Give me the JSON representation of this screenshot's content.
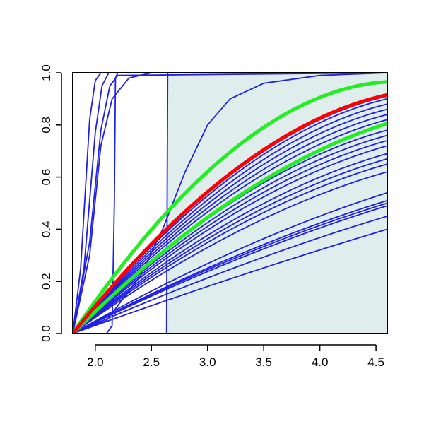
{
  "chart_data": {
    "type": "line",
    "title": "",
    "xlabel": "",
    "ylabel": "",
    "xlim": [
      1.8,
      4.6
    ],
    "ylim": [
      0,
      1
    ],
    "x_ticks": [
      "2.0",
      "2.5",
      "3.0",
      "3.5",
      "4.0",
      "4.5"
    ],
    "y_ticks": [
      "0.0",
      "0.2",
      "0.4",
      "0.6",
      "0.8",
      "1.0"
    ],
    "x_tick_values": [
      2.0,
      2.5,
      3.0,
      3.5,
      4.0,
      4.5
    ],
    "y_tick_values": [
      0.0,
      0.2,
      0.4,
      0.6,
      0.8,
      1.0
    ],
    "shaded_region": {
      "x_from": 2.64,
      "x_to": 4.6,
      "color": "#e0eded"
    },
    "colors": {
      "blue": "#2020e6",
      "red": "#ff0000",
      "green": "#22ee22",
      "frame": "#000000"
    },
    "series": [
      {
        "color": "blue",
        "points": [
          [
            1.8,
            0
          ],
          [
            1.87,
            0.25
          ],
          [
            1.95,
            0.82
          ],
          [
            2.0,
            0.97
          ],
          [
            2.05,
            1.0
          ],
          [
            4.6,
            1.0
          ]
        ]
      },
      {
        "color": "blue",
        "points": [
          [
            1.8,
            0
          ],
          [
            1.9,
            0.25
          ],
          [
            2.0,
            0.77
          ],
          [
            2.06,
            0.95
          ],
          [
            2.12,
            1.0
          ],
          [
            4.6,
            1.0
          ]
        ]
      },
      {
        "color": "blue",
        "points": [
          [
            1.8,
            0
          ],
          [
            1.95,
            0.35
          ],
          [
            2.05,
            0.78
          ],
          [
            2.13,
            0.95
          ],
          [
            2.2,
            0.99
          ],
          [
            4.6,
            1.0
          ]
        ]
      },
      {
        "color": "blue",
        "points": [
          [
            1.8,
            0
          ],
          [
            1.95,
            0.3
          ],
          [
            2.05,
            0.72
          ],
          [
            2.15,
            0.9
          ],
          [
            2.3,
            0.98
          ],
          [
            2.5,
            1.0
          ],
          [
            4.6,
            1.0
          ]
        ]
      },
      {
        "color": "blue",
        "points": [
          [
            1.8,
            0
          ],
          [
            2.1,
            0.0
          ],
          [
            2.15,
            0.03
          ],
          [
            2.17,
            0.5
          ],
          [
            2.18,
            0.98
          ],
          [
            2.2,
            1.0
          ],
          [
            4.6,
            1.0
          ]
        ]
      },
      {
        "color": "blue",
        "points": [
          [
            1.8,
            0
          ],
          [
            2.635,
            0
          ],
          [
            2.64,
            0.5
          ],
          [
            2.645,
            1.0
          ],
          [
            4.6,
            1.0
          ]
        ]
      },
      {
        "color": "blue",
        "points": [
          [
            1.8,
            0
          ],
          [
            2.1,
            0.05
          ],
          [
            2.4,
            0.22
          ],
          [
            2.6,
            0.4
          ],
          [
            2.8,
            0.62
          ],
          [
            3.0,
            0.8
          ],
          [
            3.2,
            0.9
          ],
          [
            3.5,
            0.96
          ],
          [
            4.0,
            0.99
          ],
          [
            4.6,
            1.0
          ]
        ]
      },
      {
        "color": "blue",
        "points": [
          [
            1.8,
            0
          ],
          [
            4.6,
            0.91
          ]
        ],
        "curve": 0.72
      },
      {
        "color": "blue",
        "points": [
          [
            1.8,
            0
          ],
          [
            4.6,
            0.9
          ]
        ],
        "curve": 0.7
      },
      {
        "color": "blue",
        "points": [
          [
            1.8,
            0
          ],
          [
            4.6,
            0.88
          ]
        ],
        "curve": 0.68
      },
      {
        "color": "blue",
        "points": [
          [
            1.8,
            0
          ],
          [
            4.6,
            0.86
          ]
        ],
        "curve": 0.66
      },
      {
        "color": "blue",
        "points": [
          [
            1.8,
            0
          ],
          [
            4.6,
            0.84
          ]
        ],
        "curve": 0.64
      },
      {
        "color": "blue",
        "points": [
          [
            1.8,
            0
          ],
          [
            4.6,
            0.82
          ]
        ],
        "curve": 0.62
      },
      {
        "color": "blue",
        "points": [
          [
            1.8,
            0
          ],
          [
            4.6,
            0.78
          ]
        ],
        "curve": 0.6
      },
      {
        "color": "blue",
        "points": [
          [
            1.8,
            0
          ],
          [
            4.6,
            0.76
          ]
        ],
        "curve": 0.58
      },
      {
        "color": "blue",
        "points": [
          [
            1.8,
            0
          ],
          [
            4.6,
            0.74
          ]
        ],
        "curve": 0.56
      },
      {
        "color": "blue",
        "points": [
          [
            1.8,
            0
          ],
          [
            4.6,
            0.72
          ]
        ],
        "curve": 0.54
      },
      {
        "color": "blue",
        "points": [
          [
            1.8,
            0
          ],
          [
            4.6,
            0.69
          ]
        ],
        "curve": 0.52
      },
      {
        "color": "blue",
        "points": [
          [
            1.8,
            0
          ],
          [
            4.6,
            0.67
          ]
        ],
        "curve": 0.5
      },
      {
        "color": "blue",
        "points": [
          [
            1.8,
            0
          ],
          [
            4.6,
            0.65
          ]
        ],
        "curve": 0.48
      },
      {
        "color": "blue",
        "points": [
          [
            1.8,
            0
          ],
          [
            4.6,
            0.62
          ]
        ],
        "curve": 0.46
      },
      {
        "color": "blue",
        "points": [
          [
            1.8,
            0
          ],
          [
            4.6,
            0.54
          ]
        ],
        "curve": 0.3
      },
      {
        "color": "blue",
        "points": [
          [
            1.8,
            0
          ],
          [
            4.6,
            0.51
          ]
        ],
        "curve": 0.28
      },
      {
        "color": "blue",
        "points": [
          [
            1.8,
            0
          ],
          [
            4.6,
            0.5
          ]
        ],
        "curve": 0.27
      },
      {
        "color": "blue",
        "points": [
          [
            1.8,
            0
          ],
          [
            4.6,
            0.49
          ]
        ],
        "curve": 0.25
      },
      {
        "color": "blue",
        "points": [
          [
            1.8,
            0
          ],
          [
            4.6,
            0.45
          ]
        ],
        "curve": 0.2
      },
      {
        "color": "blue",
        "points": [
          [
            1.8,
            0
          ],
          [
            4.6,
            0.4
          ]
        ],
        "curve": 0.1
      },
      {
        "color": "green",
        "points": [
          [
            1.8,
            0
          ],
          [
            4.6,
            0.965
          ]
        ],
        "curve": 0.95,
        "bold": true
      },
      {
        "color": "green",
        "points": [
          [
            1.8,
            0
          ],
          [
            4.6,
            0.805
          ]
        ],
        "curve": 0.55,
        "bold": true
      },
      {
        "color": "red",
        "points": [
          [
            1.8,
            0
          ],
          [
            4.6,
            0.915
          ]
        ],
        "curve": 0.73,
        "bold": true
      }
    ]
  }
}
